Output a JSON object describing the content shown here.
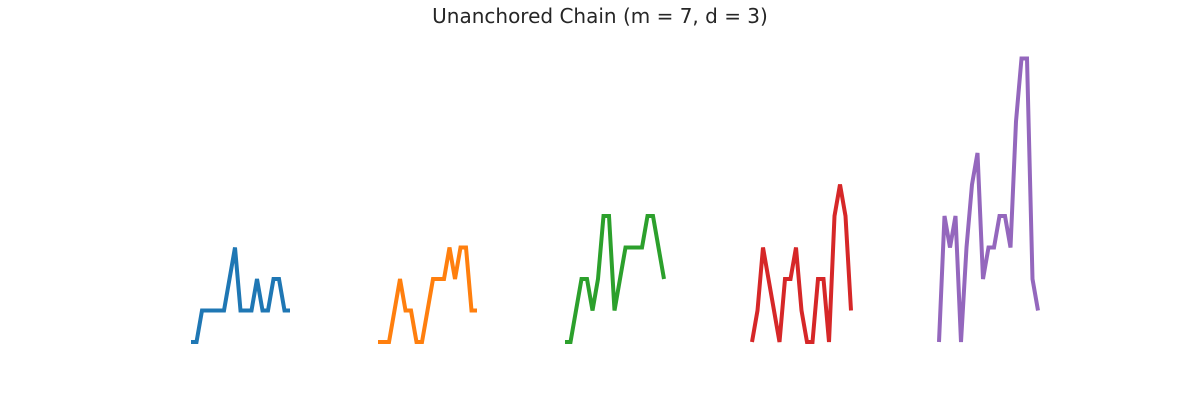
{
  "chart_data": {
    "type": "line",
    "title": "Unanchored Chain (m = 7, d = 3)",
    "xlabel": "",
    "ylabel": "",
    "grid": false,
    "axes_visible": false,
    "ylim": [
      0,
      9
    ],
    "line_width": 4,
    "series": [
      {
        "color": "#1f77b4",
        "points": [
          [
            0,
            0
          ],
          [
            1,
            0
          ],
          [
            2,
            1
          ],
          [
            3,
            1
          ],
          [
            4,
            1
          ],
          [
            5,
            1
          ],
          [
            6,
            1
          ],
          [
            7,
            2
          ],
          [
            8,
            3
          ],
          [
            9,
            1
          ],
          [
            10,
            1
          ],
          [
            11,
            1
          ],
          [
            12,
            2
          ],
          [
            13,
            1
          ],
          [
            14,
            1
          ],
          [
            15,
            2
          ],
          [
            16,
            2
          ],
          [
            17,
            1
          ],
          [
            18,
            1
          ]
        ]
      },
      {
        "color": "#ff7f0e",
        "points": [
          [
            0,
            0
          ],
          [
            1,
            0
          ],
          [
            2,
            0
          ],
          [
            3,
            1
          ],
          [
            4,
            2
          ],
          [
            5,
            1
          ],
          [
            6,
            1
          ],
          [
            7,
            0
          ],
          [
            8,
            0
          ],
          [
            9,
            1
          ],
          [
            10,
            2
          ],
          [
            11,
            2
          ],
          [
            12,
            2
          ],
          [
            13,
            3
          ],
          [
            14,
            2
          ],
          [
            15,
            3
          ],
          [
            16,
            3
          ],
          [
            17,
            1
          ],
          [
            18,
            1
          ]
        ]
      },
      {
        "color": "#2ca02c",
        "points": [
          [
            0,
            0
          ],
          [
            1,
            0
          ],
          [
            2,
            1
          ],
          [
            3,
            2
          ],
          [
            4,
            2
          ],
          [
            5,
            1
          ],
          [
            6,
            2
          ],
          [
            7,
            4
          ],
          [
            8,
            4
          ],
          [
            9,
            1
          ],
          [
            10,
            2
          ],
          [
            11,
            3
          ],
          [
            12,
            3
          ],
          [
            13,
            3
          ],
          [
            14,
            3
          ],
          [
            15,
            4
          ],
          [
            16,
            4
          ],
          [
            17,
            3
          ],
          [
            18,
            2
          ]
        ]
      },
      {
        "color": "#d62728",
        "points": [
          [
            0,
            0
          ],
          [
            1,
            1
          ],
          [
            2,
            3
          ],
          [
            3,
            2
          ],
          [
            4,
            1
          ],
          [
            5,
            0
          ],
          [
            6,
            2
          ],
          [
            7,
            2
          ],
          [
            8,
            3
          ],
          [
            9,
            1
          ],
          [
            10,
            0
          ],
          [
            11,
            0
          ],
          [
            12,
            2
          ],
          [
            13,
            2
          ],
          [
            14,
            0
          ],
          [
            15,
            4
          ],
          [
            16,
            5
          ],
          [
            17,
            4
          ],
          [
            18,
            1
          ]
        ]
      },
      {
        "color": "#9467bd",
        "points": [
          [
            0,
            0
          ],
          [
            1,
            4
          ],
          [
            2,
            3
          ],
          [
            3,
            4
          ],
          [
            4,
            0
          ],
          [
            5,
            3
          ],
          [
            6,
            5
          ],
          [
            7,
            6
          ],
          [
            8,
            2
          ],
          [
            9,
            3
          ],
          [
            10,
            3
          ],
          [
            11,
            4
          ],
          [
            12,
            4
          ],
          [
            13,
            3
          ],
          [
            14,
            7
          ],
          [
            15,
            9
          ],
          [
            16,
            9
          ],
          [
            17,
            2
          ],
          [
            18,
            1
          ]
        ]
      }
    ]
  }
}
